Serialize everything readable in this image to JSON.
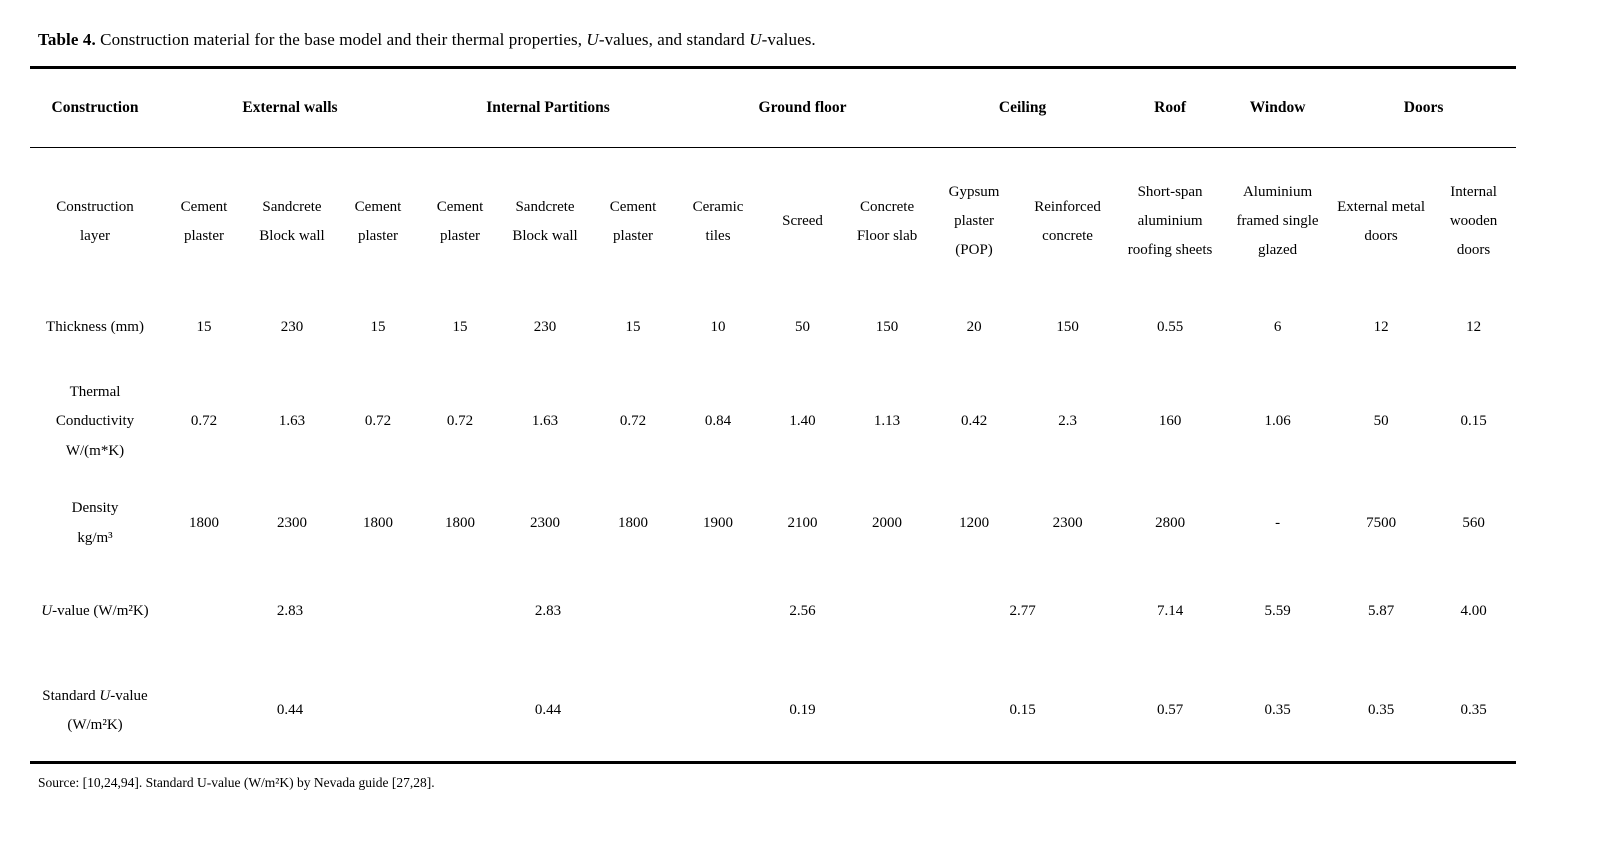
{
  "colors": {
    "background": "#ffffff",
    "text": "#000000",
    "rule": "#000000"
  },
  "caption": {
    "segments": [
      {
        "t": "Table 4.",
        "b": true
      },
      {
        "t": " Construction material for the base model and their thermal properties, "
      },
      {
        "t": "U",
        "i": true
      },
      {
        "t": "-values, and standard "
      },
      {
        "t": "U",
        "i": true
      },
      {
        "t": "-values."
      }
    ]
  },
  "table": {
    "group_headers": [
      {
        "label": "Construction",
        "span": 1
      },
      {
        "label": "External walls",
        "span": 3
      },
      {
        "label": "Internal Partitions",
        "span": 3
      },
      {
        "label": "Ground floor",
        "span": 3
      },
      {
        "label": "Ceiling",
        "span": 2
      },
      {
        "label": "Roof",
        "span": 1
      },
      {
        "label": "Window",
        "span": 1
      },
      {
        "label": "Doors",
        "span": 2
      }
    ],
    "layer_header_row": {
      "label_segments": [
        {
          "t": "Construction"
        },
        {
          "br": true
        },
        {
          "t": "layer"
        }
      ],
      "columns": [
        "Cement plaster",
        "Sandcrete Block wall",
        "Cement plaster",
        "Cement plaster",
        "Sandcrete Block wall",
        "Cement plaster",
        "Ceramic tiles",
        "Screed",
        "Concrete Floor slab",
        "Gypsum plaster (POP)",
        "Reinforced concrete",
        "Short-span aluminium roofing sheets",
        "Aluminium framed single glazed",
        "External metal doors",
        "Internal wooden doors"
      ]
    },
    "data_rows": [
      {
        "id": "thickness",
        "label_segments": [
          {
            "t": "Thickness (mm)"
          }
        ],
        "cells": [
          {
            "v": "15"
          },
          {
            "v": "230"
          },
          {
            "v": "15"
          },
          {
            "v": "15"
          },
          {
            "v": "230"
          },
          {
            "v": "15"
          },
          {
            "v": "10"
          },
          {
            "v": "50"
          },
          {
            "v": "150"
          },
          {
            "v": "20"
          },
          {
            "v": "150"
          },
          {
            "v": "0.55"
          },
          {
            "v": "6"
          },
          {
            "v": "12"
          },
          {
            "v": "12"
          }
        ]
      },
      {
        "id": "thermal-conductivity",
        "label_segments": [
          {
            "t": "Thermal"
          },
          {
            "br": true
          },
          {
            "t": "Conductivity"
          },
          {
            "br": true
          },
          {
            "t": "W/(m*K)"
          }
        ],
        "cells": [
          {
            "v": "0.72"
          },
          {
            "v": "1.63"
          },
          {
            "v": "0.72"
          },
          {
            "v": "0.72"
          },
          {
            "v": "1.63"
          },
          {
            "v": "0.72"
          },
          {
            "v": "0.84"
          },
          {
            "v": "1.40"
          },
          {
            "v": "1.13"
          },
          {
            "v": "0.42"
          },
          {
            "v": "2.3"
          },
          {
            "v": "160"
          },
          {
            "v": "1.06"
          },
          {
            "v": "50"
          },
          {
            "v": "0.15"
          }
        ]
      },
      {
        "id": "density",
        "label_segments": [
          {
            "t": "Density"
          },
          {
            "br": true
          },
          {
            "t": "kg/m³"
          }
        ],
        "cells": [
          {
            "v": "1800"
          },
          {
            "v": "2300"
          },
          {
            "v": "1800"
          },
          {
            "v": "1800"
          },
          {
            "v": "2300"
          },
          {
            "v": "1800"
          },
          {
            "v": "1900"
          },
          {
            "v": "2100"
          },
          {
            "v": "2000"
          },
          {
            "v": "1200"
          },
          {
            "v": "2300"
          },
          {
            "v": "2800"
          },
          {
            "v": "-"
          },
          {
            "v": "7500"
          },
          {
            "v": "560"
          }
        ]
      },
      {
        "id": "u-value",
        "label_segments": [
          {
            "t": "U",
            "i": true
          },
          {
            "t": "-value (W/m²K)"
          }
        ],
        "cells": [
          {
            "v": "2.83",
            "span": 3
          },
          {
            "v": "2.83",
            "span": 3
          },
          {
            "v": "2.56",
            "span": 3
          },
          {
            "v": "2.77",
            "span": 2
          },
          {
            "v": "7.14"
          },
          {
            "v": "5.59"
          },
          {
            "v": "5.87"
          },
          {
            "v": "4.00"
          }
        ]
      },
      {
        "id": "standard-u-value",
        "label_segments": [
          {
            "t": "Standard "
          },
          {
            "t": "U",
            "i": true
          },
          {
            "t": "-value"
          },
          {
            "br": true
          },
          {
            "t": "(W/m²K)"
          }
        ],
        "cells": [
          {
            "v": "0.44",
            "span": 3
          },
          {
            "v": "0.44",
            "span": 3
          },
          {
            "v": "0.19",
            "span": 3
          },
          {
            "v": "0.15",
            "span": 2
          },
          {
            "v": "0.57"
          },
          {
            "v": "0.35"
          },
          {
            "v": "0.35"
          },
          {
            "v": "0.35"
          }
        ]
      }
    ]
  },
  "footnote": "Source: [10,24,94]. Standard U-value (W/m²K) by Nevada guide [27,28]."
}
